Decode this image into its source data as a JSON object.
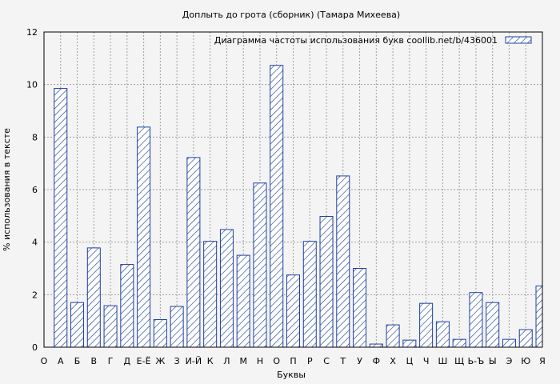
{
  "chart_data": {
    "type": "bar",
    "title": "Доплыть до грота (сборник) (Тамара Михеева)",
    "xlabel": "Буквы",
    "ylabel": "% использования в тексте",
    "legend": "Диаграмма частоты использования букв  coollib.net/b/436001",
    "legend_position": "top-right",
    "ylim": [
      0,
      12
    ],
    "yticks": [
      0,
      2,
      4,
      6,
      8,
      10,
      12
    ],
    "grid": true,
    "colors": {
      "bar_stroke": "#1f3f9f",
      "background": "#f4f4f4",
      "grid": "#a0a0a0"
    },
    "categories": [
      "О",
      "А",
      "Б",
      "В",
      "Г",
      "Д",
      "Е-Ё",
      "Ж",
      "З",
      "И-Й",
      "К",
      "Л",
      "М",
      "Н",
      "О",
      "П",
      "Р",
      "С",
      "Т",
      "У",
      "Ф",
      "Х",
      "Ц",
      "Ч",
      "Ш",
      "Щ",
      "Ь-Ъ",
      "Ы",
      "Э",
      "Ю",
      "Я"
    ],
    "values": [
      null,
      9.85,
      1.7,
      3.78,
      1.58,
      3.15,
      8.38,
      1.05,
      1.55,
      7.22,
      4.03,
      4.48,
      3.5,
      6.25,
      10.73,
      2.75,
      4.03,
      4.98,
      6.52,
      3.0,
      0.12,
      0.85,
      0.27,
      1.67,
      0.97,
      0.3,
      2.08,
      1.7,
      0.3,
      0.67,
      2.33
    ]
  }
}
